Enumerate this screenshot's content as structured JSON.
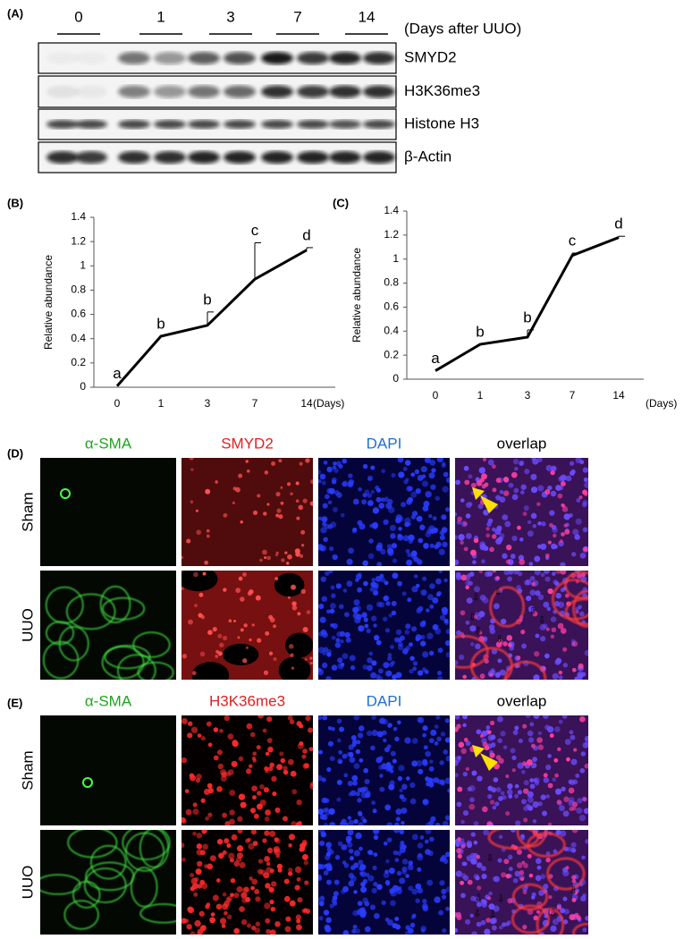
{
  "panel_a": {
    "label": "(A)",
    "lanes": [
      "0",
      "1",
      "3",
      "7",
      "14"
    ],
    "unit_note": "(Days  after UUO)",
    "blots": [
      "SMYD2",
      "H3K36me3",
      "Histone H3",
      "β-Actin"
    ]
  },
  "chart_data": [
    {
      "type": "line",
      "label": "(B)",
      "y_label": "Relative  abundance",
      "x_unit": "(Days)",
      "categories": [
        "0",
        "1",
        "3",
        "7",
        "14"
      ],
      "values": [
        0.01,
        0.42,
        0.51,
        0.89,
        1.13
      ],
      "errors": [
        null,
        null,
        0.11,
        0.3,
        0.02
      ],
      "letters": [
        "a",
        "b",
        "b",
        "c",
        "d"
      ],
      "color": "#000000",
      "ylim": [
        0,
        1.4
      ],
      "yticks": [
        0,
        0.2,
        0.4,
        0.6,
        0.8,
        1,
        1.2,
        1.4
      ]
    },
    {
      "type": "line",
      "label": "(C)",
      "y_label": "Relative  abundance",
      "x_unit": "(Days)",
      "categories": [
        "0",
        "1",
        "3",
        "7",
        "14"
      ],
      "values": [
        0.07,
        0.29,
        0.35,
        1.03,
        1.18
      ],
      "errors": [
        null,
        null,
        0.06,
        0.02,
        0.01
      ],
      "letters": [
        "a",
        "b",
        "b",
        "c",
        "d"
      ],
      "color": "#000000",
      "ylim": [
        0,
        1.4
      ],
      "yticks": [
        0,
        0.2,
        0.4,
        0.6,
        0.8,
        1,
        1.2,
        1.4
      ]
    }
  ],
  "panel_d": {
    "label": "(D)",
    "columns": [
      "α-SMA",
      "SMYD2",
      "DAPI",
      "overlap"
    ],
    "rows": [
      "Sham",
      "UUO"
    ]
  },
  "panel_e": {
    "label": "(E)",
    "columns": [
      "α-SMA",
      "H3K36me3",
      "DAPI",
      "overlap"
    ],
    "rows": [
      "Sham",
      "UUO"
    ]
  }
}
